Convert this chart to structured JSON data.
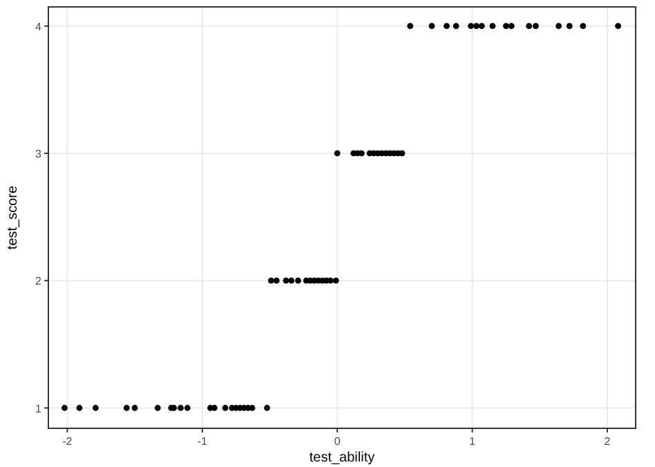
{
  "chart_data": {
    "type": "scatter",
    "xlabel": "test_ability",
    "ylabel": "test_score",
    "x": [
      -2.02,
      -1.91,
      -1.79,
      -1.56,
      -1.5,
      -1.33,
      -1.23,
      -1.21,
      -1.16,
      -1.11,
      -0.94,
      -0.91,
      -0.83,
      -0.78,
      -0.75,
      -0.72,
      -0.69,
      -0.66,
      -0.63,
      -0.52,
      -0.49,
      -0.45,
      -0.38,
      -0.34,
      -0.29,
      -0.23,
      -0.2,
      -0.17,
      -0.14,
      -0.11,
      -0.08,
      -0.05,
      -0.01,
      0.0,
      0.12,
      0.15,
      0.18,
      0.24,
      0.27,
      0.3,
      0.33,
      0.36,
      0.39,
      0.42,
      0.45,
      0.48,
      0.54,
      0.7,
      0.81,
      0.88,
      0.99,
      1.03,
      1.07,
      1.15,
      1.25,
      1.29,
      1.42,
      1.47,
      1.64,
      1.72,
      1.82,
      2.08
    ],
    "series": [
      {
        "color": "#000000",
        "values": [
          1,
          1,
          1,
          1,
          1,
          1,
          1,
          1,
          1,
          1,
          1,
          1,
          1,
          1,
          1,
          1,
          1,
          1,
          1,
          1,
          2,
          2,
          2,
          2,
          2,
          2,
          2,
          2,
          2,
          2,
          2,
          2,
          2,
          3,
          3,
          3,
          3,
          3,
          3,
          3,
          3,
          3,
          3,
          3,
          3,
          3,
          4,
          4,
          4,
          4,
          4,
          4,
          4,
          4,
          4,
          4,
          4,
          4,
          4,
          4,
          4,
          4
        ]
      }
    ],
    "xlim": [
      -2.14,
      2.21
    ],
    "ylim": [
      0.84,
      4.15
    ],
    "xticks": [
      -2,
      -1,
      0,
      1,
      2
    ],
    "yticks": [
      1,
      2,
      3,
      4
    ],
    "grid": true,
    "marker": "circle"
  }
}
